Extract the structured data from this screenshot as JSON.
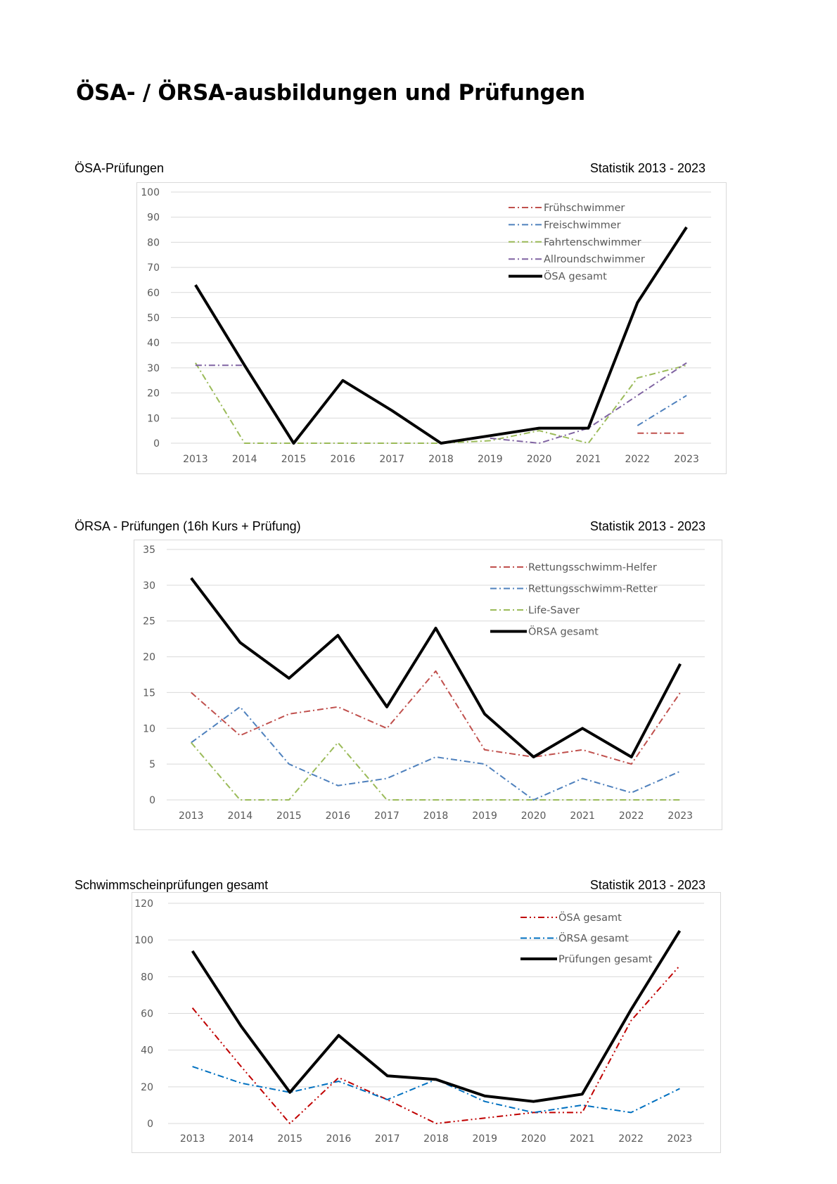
{
  "page": {
    "title": "ÖSA- / ÖRSA-ausbildungen und Prüfungen"
  },
  "sections": [
    {
      "title": "ÖSA-Prüfungen",
      "stat": "Statistik 2013 - 2023"
    },
    {
      "title": "ÖRSA - Prüfungen (16h Kurs + Prüfung)",
      "stat": "Statistik 2013 - 2023"
    },
    {
      "title": "Schwimmscheinprüfungen gesamt",
      "stat": "Statistik 2013 - 2023"
    }
  ],
  "chart_data": [
    {
      "type": "line",
      "title": "",
      "categories": [
        "2013",
        "2014",
        "2015",
        "2016",
        "2017",
        "2018",
        "2019",
        "2020",
        "2021",
        "2022",
        "2023"
      ],
      "ylim": [
        0,
        100
      ],
      "yticks": [
        0,
        10,
        20,
        30,
        40,
        50,
        60,
        70,
        80,
        90,
        100
      ],
      "grid": true,
      "legend_position": "top-right",
      "series": [
        {
          "name": "Frühschwimmer",
          "color": "#c0504d",
          "style": "dashdot",
          "values": [
            null,
            null,
            null,
            null,
            null,
            null,
            null,
            null,
            null,
            4,
            4
          ]
        },
        {
          "name": "Freischwimmer",
          "color": "#4f81bd",
          "style": "dashdot",
          "values": [
            null,
            null,
            null,
            null,
            null,
            null,
            null,
            null,
            null,
            7,
            19
          ]
        },
        {
          "name": "Fahrtenschwimmer",
          "color": "#9bbb59",
          "style": "dashdot",
          "values": [
            32,
            0,
            0,
            0,
            0,
            0,
            1,
            5,
            0,
            26,
            31
          ]
        },
        {
          "name": "Allroundschwimmer",
          "color": "#8064a2",
          "style": "dashdot",
          "values": [
            31,
            31,
            null,
            null,
            null,
            null,
            2,
            0,
            6,
            19,
            32
          ]
        },
        {
          "name": "ÖSA gesamt",
          "color": "#000000",
          "style": "solid",
          "values": [
            63,
            31,
            0,
            25,
            13,
            0,
            3,
            6,
            6,
            56,
            86
          ]
        }
      ]
    },
    {
      "type": "line",
      "title": "",
      "categories": [
        "2013",
        "2014",
        "2015",
        "2016",
        "2017",
        "2018",
        "2019",
        "2020",
        "2021",
        "2022",
        "2023"
      ],
      "ylim": [
        0,
        35
      ],
      "yticks": [
        0,
        5,
        10,
        15,
        20,
        25,
        30,
        35
      ],
      "grid": true,
      "legend_position": "top-right",
      "series": [
        {
          "name": "Rettungsschwimm-Helfer",
          "color": "#c0504d",
          "style": "dashdot",
          "values": [
            15,
            9,
            12,
            13,
            10,
            18,
            7,
            6,
            7,
            5,
            15
          ]
        },
        {
          "name": "Rettungsschwimm-Retter",
          "color": "#4f81bd",
          "style": "dashdot",
          "values": [
            8,
            13,
            5,
            2,
            3,
            6,
            5,
            0,
            3,
            1,
            4
          ]
        },
        {
          "name": "Life-Saver",
          "color": "#9bbb59",
          "style": "dashdot",
          "values": [
            8,
            0,
            0,
            8,
            0,
            0,
            0,
            0,
            0,
            0,
            0
          ]
        },
        {
          "name": "ÖRSA gesamt",
          "color": "#000000",
          "style": "solid",
          "values": [
            31,
            22,
            17,
            23,
            13,
            24,
            12,
            6,
            10,
            6,
            19
          ]
        }
      ]
    },
    {
      "type": "line",
      "title": "",
      "categories": [
        "2013",
        "2014",
        "2015",
        "2016",
        "2017",
        "2018",
        "2019",
        "2020",
        "2021",
        "2022",
        "2023"
      ],
      "ylim": [
        0,
        120
      ],
      "yticks": [
        0,
        20,
        40,
        60,
        80,
        100,
        120
      ],
      "grid": true,
      "legend_position": "top-right",
      "series": [
        {
          "name": "ÖSA gesamt",
          "color": "#c00000",
          "style": "dashdotdot",
          "values": [
            63,
            31,
            0,
            25,
            13,
            0,
            3,
            6,
            6,
            56,
            86
          ]
        },
        {
          "name": "ÖRSA gesamt",
          "color": "#0070c0",
          "style": "dashdot",
          "values": [
            31,
            22,
            17,
            23,
            13,
            24,
            12,
            6,
            10,
            6,
            19
          ]
        },
        {
          "name": "Prüfungen gesamt",
          "color": "#000000",
          "style": "solid",
          "values": [
            94,
            53,
            17,
            48,
            26,
            24,
            15,
            12,
            16,
            62,
            105
          ]
        }
      ]
    }
  ]
}
